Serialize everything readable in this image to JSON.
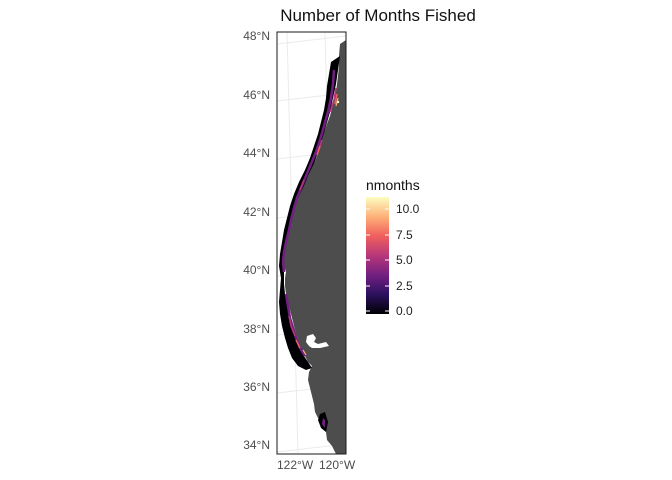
{
  "title": "Number of Months Fished",
  "map": {
    "y_ticks": [
      "48°N",
      "46°N",
      "44°N",
      "42°N",
      "40°N",
      "38°N",
      "36°N",
      "34°N"
    ],
    "x_ticks": [
      "122°W",
      "120°W"
    ],
    "land_color": "#4d4d4d",
    "nodata_color": "#000004"
  },
  "legend": {
    "title": "nmonths",
    "ticks": [
      "10.0",
      "7.5",
      "5.0",
      "2.5",
      "0.0"
    ],
    "range": [
      0,
      11
    ],
    "colors": [
      "#000004",
      "#2c115f",
      "#721f81",
      "#b73779",
      "#f1605d",
      "#feb078",
      "#fcfdbf"
    ]
  }
}
